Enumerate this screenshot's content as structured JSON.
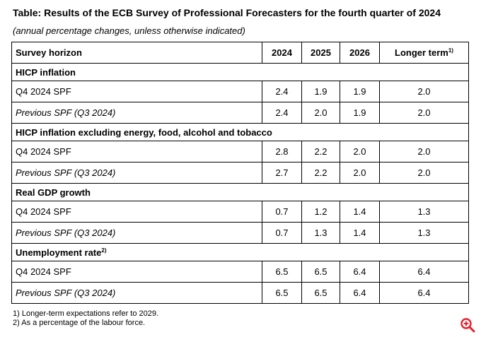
{
  "title": "Table: Results of the ECB Survey of Professional Forecasters for the fourth quarter of 2024",
  "subtitle": "(annual percentage changes, unless otherwise indicated)",
  "header": {
    "horizon": "Survey horizon",
    "y2024": "2024",
    "y2025": "2025",
    "y2026": "2026",
    "longer": "Longer term",
    "longer_note": "1)"
  },
  "sections": [
    {
      "label": "HICP inflation",
      "note": "",
      "rows": [
        {
          "label": "Q4 2024 SPF",
          "v2024": "2.4",
          "v2025": "1.9",
          "v2026": "1.9",
          "longer": "2.0"
        },
        {
          "label": "Previous SPF (Q3 2024)",
          "v2024": "2.4",
          "v2025": "2.0",
          "v2026": "1.9",
          "longer": "2.0"
        }
      ]
    },
    {
      "label": "HICP inflation excluding energy, food, alcohol and tobacco",
      "note": "",
      "rows": [
        {
          "label": "Q4 2024 SPF",
          "v2024": "2.8",
          "v2025": "2.2",
          "v2026": "2.0",
          "longer": "2.0"
        },
        {
          "label": "Previous SPF (Q3 2024)",
          "v2024": "2.7",
          "v2025": "2.2",
          "v2026": "2.0",
          "longer": "2.0"
        }
      ]
    },
    {
      "label": "Real GDP growth",
      "note": "",
      "rows": [
        {
          "label": "Q4 2024 SPF",
          "v2024": "0.7",
          "v2025": "1.2",
          "v2026": "1.4",
          "longer": "1.3"
        },
        {
          "label": "Previous SPF (Q3 2024)",
          "v2024": "0.7",
          "v2025": "1.3",
          "v2026": "1.4",
          "longer": "1.3"
        }
      ]
    },
    {
      "label": "Unemployment rate",
      "note": "2)",
      "rows": [
        {
          "label": "Q4 2024 SPF",
          "v2024": "6.5",
          "v2025": "6.5",
          "v2026": "6.4",
          "longer": "6.4"
        },
        {
          "label": "Previous SPF (Q3 2024)",
          "v2024": "6.5",
          "v2025": "6.5",
          "v2026": "6.4",
          "longer": "6.4"
        }
      ]
    }
  ],
  "footnotes": [
    "1) Longer-term expectations refer to 2029.",
    "2) As a percentage of the labour force."
  ],
  "icons": {
    "zoom": "zoom-in-icon",
    "zoom_color": "#e8202a"
  }
}
